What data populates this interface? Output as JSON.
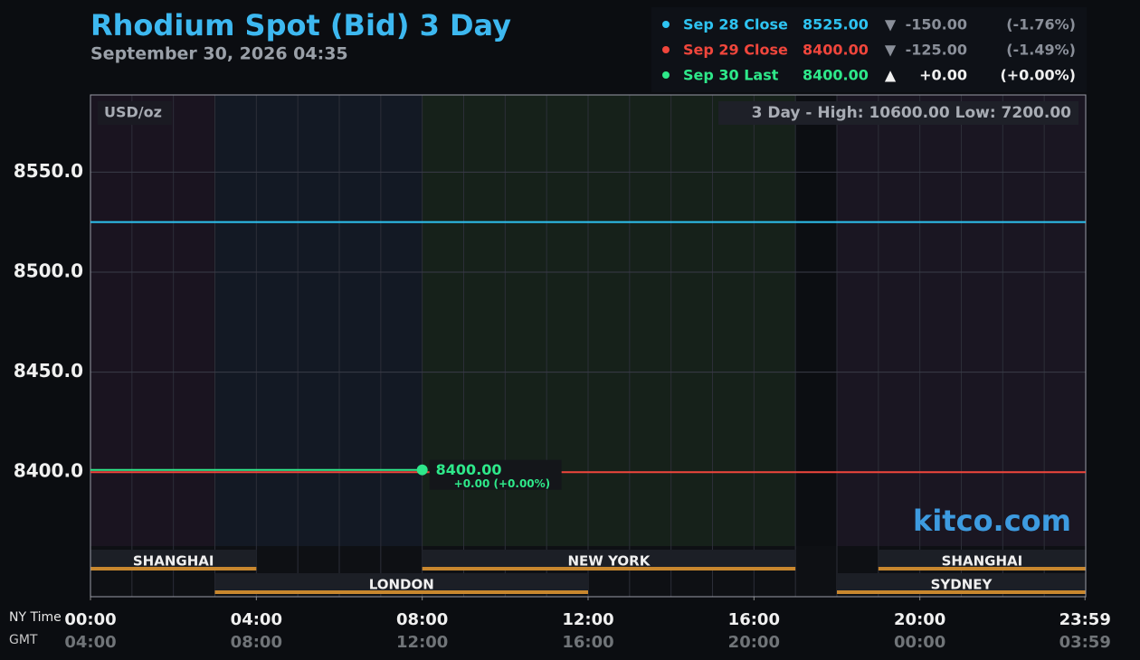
{
  "chart_data": {
    "type": "line",
    "title": "Rhodium Spot (Bid) 3 Day",
    "subtitle": "September 30, 2026 04:35",
    "unit_label": "USD/oz",
    "range_note": "3 Day - High: 10600.00  Low: 7200.00",
    "watermark": "kitco.com",
    "x_label": "NY Time",
    "x2_label": "GMT",
    "xlim": [
      0,
      24
    ],
    "xticks": [
      {
        "value": 0,
        "label": "00:00"
      },
      {
        "value": 4,
        "label": "04:00"
      },
      {
        "value": 8,
        "label": "08:00"
      },
      {
        "value": 12,
        "label": "12:00"
      },
      {
        "value": 16,
        "label": "16:00"
      },
      {
        "value": 20,
        "label": "20:00"
      },
      {
        "value": 23.983,
        "label": "23:59"
      }
    ],
    "xticks_gmt": [
      "04:00",
      "08:00",
      "12:00",
      "16:00",
      "20:00",
      "00:00",
      "03:59"
    ],
    "ylim": [
      8337.7,
      8588.6
    ],
    "yticks": [
      {
        "value": 8400,
        "label": "8400.0"
      },
      {
        "value": 8450,
        "label": "8450.0"
      },
      {
        "value": 8500,
        "label": "8500.0"
      },
      {
        "value": 8550,
        "label": "8550.0"
      }
    ],
    "grid": true,
    "series": [
      {
        "name": "Sep 28 Close",
        "color": "#2ec4f2",
        "x": [
          0,
          24
        ],
        "values": [
          8525,
          8525
        ],
        "price": 8525,
        "price_label": "8525.00",
        "arrow": "▼",
        "change": -150,
        "change_label": "-150.00",
        "change_pct": -1.76,
        "change_pct_label": "(-1.76%)"
      },
      {
        "name": "Sep 29 Close",
        "color": "#f0463c",
        "x": [
          0,
          24
        ],
        "values": [
          8400,
          8400
        ],
        "price": 8400,
        "price_label": "8400.00",
        "arrow": "▼",
        "change": -125,
        "change_label": "-125.00",
        "change_pct": -1.49,
        "change_pct_label": "(-1.49%)"
      },
      {
        "name": "Sep 30 Last",
        "color": "#2ee88a",
        "x": [
          0,
          8
        ],
        "values": [
          8400,
          8400
        ],
        "price": 8400,
        "price_label": "8400.00",
        "arrow": "▲",
        "change": 0,
        "change_label": "+0.00",
        "change_pct": 0,
        "change_pct_label": "(+0.00%)"
      }
    ],
    "last_point": {
      "x": 8,
      "value": 8400,
      "label": "8400.00",
      "change_label": "+0.00 (+0.00%)"
    },
    "sessions": [
      {
        "name": "SHANGHAI",
        "start": 0,
        "end": 4,
        "row": 1
      },
      {
        "name": "LONDON",
        "start": 3,
        "end": 12,
        "row": 2
      },
      {
        "name": "NEW YORK",
        "start": 8,
        "end": 17,
        "row": 1
      },
      {
        "name": "SHANGHAI",
        "start": 19,
        "end": 24,
        "row": 1
      },
      {
        "name": "SYDNEY",
        "start": 18,
        "end": 24,
        "row": 2
      }
    ]
  }
}
